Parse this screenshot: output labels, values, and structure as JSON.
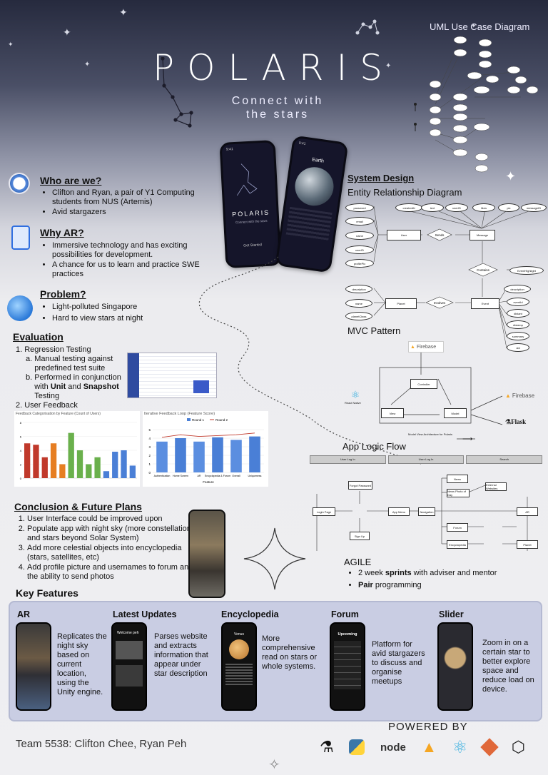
{
  "header": {
    "title": "POLARIS",
    "tagline": [
      "Connect with",
      "the stars"
    ],
    "uml_title": "UML Use Case Diagram"
  },
  "phones": {
    "left_time": "9:41",
    "left_logo": "POLARIS",
    "left_sub": "Connect with the stars",
    "left_btn": "Get Started",
    "right_time": "9:41",
    "right_title": "Earth"
  },
  "who": {
    "title": "Who are we?",
    "items": [
      "Clifton and Ryan, a pair of  Y1 Computing students from NUS (Artemis)",
      "Avid stargazers"
    ]
  },
  "why": {
    "title": "Why AR?",
    "items": [
      "Immersive technology and has exciting possibilities for development.",
      "A chance for us to learn and practice SWE practices"
    ]
  },
  "problem": {
    "title": "Problem?",
    "items": [
      "Light-polluted Singapore",
      "Hard to view stars at night"
    ]
  },
  "evaluation": {
    "title": "Evaluation",
    "item1": "Regression Testing",
    "item1a": "Manual testing against predefined test suite",
    "item1b_pre": "Performed in conjunction with ",
    "item1b_unit": "Unit",
    "item1b_and": " and ",
    "item1b_snap": "Snapshot",
    "item1b_post": " Testing",
    "item2": "User Feedback"
  },
  "chart_data": [
    {
      "type": "bar",
      "title": "Feedback Categorisation by Feature (Count of Users)",
      "ylim": [
        0,
        8
      ],
      "categories": [
        "1",
        "2",
        "3",
        "4",
        "5",
        "6",
        "7",
        "8",
        "9",
        "10",
        "11",
        "12",
        "13"
      ],
      "values": [
        5,
        4.8,
        3,
        5,
        2,
        6.5,
        4,
        2,
        3,
        1,
        3.8,
        4,
        1.8
      ]
    },
    {
      "type": "bar",
      "title": "Iterative Feedback Loop (Feature Score)",
      "xlabel": "Feature",
      "ylim": [
        0,
        5
      ],
      "categories": [
        "Authentication",
        "Home Screen",
        "AR",
        "Encyclopedia & Forum",
        "Overall",
        "Uniqueness"
      ],
      "series": [
        {
          "name": "Round 1",
          "values": [
            3.6,
            4.0,
            3.6,
            4.1,
            3.8,
            4.2
          ]
        },
        {
          "name": "Round 2",
          "values": [
            4.1,
            4.4,
            4.2,
            4.3,
            4.4,
            4.6
          ]
        }
      ],
      "yticks": [
        "0",
        "1",
        "2",
        "3",
        "4",
        "5"
      ]
    }
  ],
  "conclusion": {
    "title": "Conclusion & Future Plans",
    "items": [
      "User Interface could be improved upon",
      "Populate app with night sky (more constellations and stars beyond Solar System)",
      "Add more celestial objects into encyclopedia (stars, satellites, etc)",
      "Add profile picture and usernames to forum and the ability to send photos"
    ]
  },
  "system": {
    "title": "System Design",
    "erd": "Entity Relationship Diagram",
    "mvc": "MVC Pattern",
    "flow": "App Logic Flow"
  },
  "erd": {
    "user_attrs": [
      "password",
      "email",
      "name",
      "userID",
      "profilePic"
    ],
    "user": "User",
    "sends": "Sends",
    "message": "Message",
    "msg_attrs": [
      "createdAt",
      "text",
      "userID",
      "likes",
      "pic",
      "messageID"
    ],
    "contains": "Contains",
    "event_highlight": "EventHighlight",
    "planet_attrs": [
      "description",
      "name",
      "planetClass"
    ],
    "planet": "Planet",
    "involves": "Involves",
    "event": "Event",
    "event_attrs": [
      "description",
      "eventId",
      "distant",
      "distamp",
      "summary",
      "uid"
    ]
  },
  "mvc": {
    "firebase": "Firebase",
    "controller": "Controller",
    "view": "View",
    "model": "Model",
    "react": "React Native",
    "firebase2": "Firebase",
    "flask": "Flask",
    "caption": "Model View Architecture for Polaris"
  },
  "flow": {
    "lanes": [
      "User Log In",
      "User Log In",
      "Search"
    ],
    "boxes": [
      "Login Page",
      "Forgot Password",
      "Sign Up",
      "App Menu",
      "Navigation",
      "News",
      "News Photo of Day",
      "External Websites",
      "AR",
      "Forum",
      "Encyclopedia",
      "Planet"
    ]
  },
  "agile": {
    "title": "AGILE",
    "i1_pre": "2 week ",
    "i1_bold": "sprints",
    "i1_post": " with adviser and mentor",
    "i2_bold": "Pair",
    "i2_post": " programming"
  },
  "key_features": {
    "title": "Key Features",
    "items": [
      {
        "title": "AR",
        "desc": "Replicates the night sky based on current location, using the Unity engine."
      },
      {
        "title": "Latest Updates",
        "desc": "Parses website and extracts information that appear under star description",
        "screen": "Welcome peh"
      },
      {
        "title": "Encyclopedia",
        "desc": "More comprehensive read on stars or whole systems.",
        "screen": "Venus"
      },
      {
        "title": "Forum",
        "desc": "Platform for avid stargazers to discuss and organise meetups",
        "screen": "Upcoming"
      },
      {
        "title": "Slider",
        "desc": "Zoom in on a certain star to better explore space and reduce load on device."
      }
    ]
  },
  "footer": {
    "team": "Team 5538: Clifton Chee, Ryan Peh",
    "powered": "POWERED BY",
    "logos": [
      "flask-icon",
      "python-icon",
      "nodejs-icon",
      "firebase-icon",
      "react-icon",
      "git-icon",
      "unity-icon"
    ]
  },
  "colors": {
    "bg_top": "#262a3e",
    "card": "#c9cde3",
    "bar_blue": "#4a7fd6",
    "bar_red": "#c0392b",
    "bar_green": "#6ab04c",
    "bar_orange": "#e67e22"
  }
}
